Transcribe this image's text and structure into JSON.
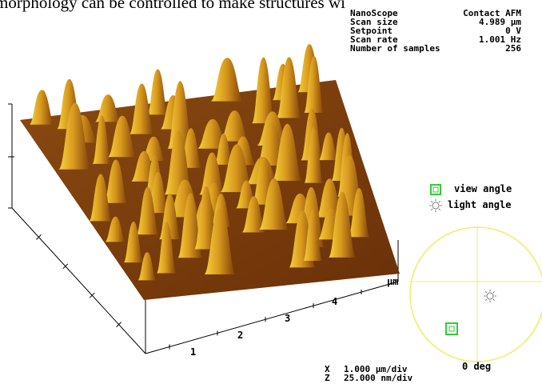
{
  "caption_fragment": "morphology can be controlled to make structures wi",
  "info": [
    [
      "NanoScope",
      "Contact AFM"
    ],
    [
      "Scan size",
      "4.989 µm"
    ],
    [
      "Setpoint",
      "0 V"
    ],
    [
      "Scan rate",
      "1.001 Hz"
    ],
    [
      "Number of samples",
      "256"
    ]
  ],
  "axis": {
    "labels": [
      "1",
      "2",
      "3",
      "4"
    ],
    "unit": "µm"
  },
  "legend": {
    "view": "view angle",
    "light": "light angle"
  },
  "angle": "0 deg",
  "scale": [
    [
      "X",
      "1.000 µm/div"
    ],
    [
      "Z",
      "25.000 nm/div"
    ]
  ]
}
